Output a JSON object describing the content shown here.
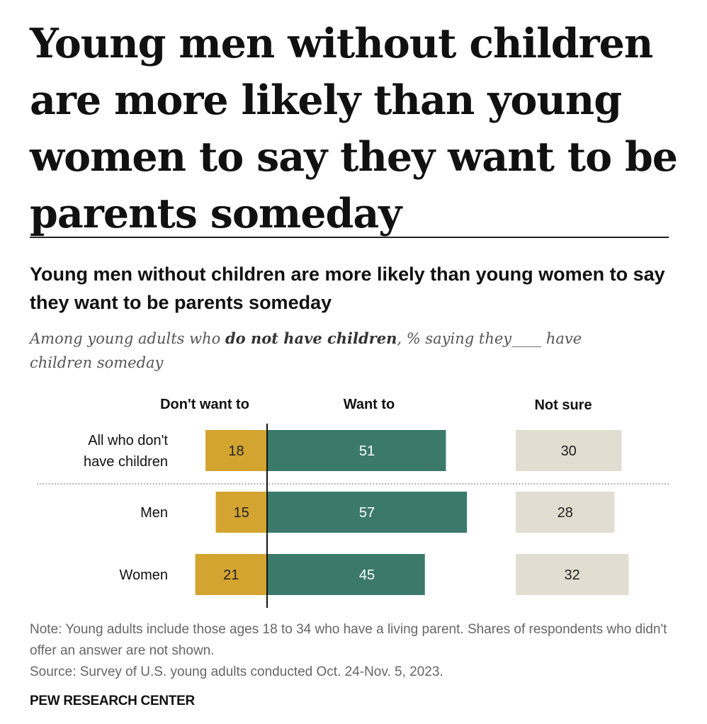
{
  "headline": "Young men without children are more likely than young women to say they want to be parents someday",
  "chart_data": {
    "type": "bar",
    "title": "Young men without children are more likely than young women to say they want to be parents someday",
    "subtitle": {
      "before": "Among young adults who ",
      "emphasis": "do not have children",
      "after": ", % saying they____ have children someday"
    },
    "categories": [
      "All who don't have children",
      "Men",
      "Women"
    ],
    "series": [
      {
        "name": "Don't want to",
        "values": [
          18,
          15,
          21
        ],
        "color": "#d4a431"
      },
      {
        "name": "Want to",
        "values": [
          51,
          57,
          45
        ],
        "color": "#3b7a6b"
      },
      {
        "name": "Not sure",
        "values": [
          30,
          28,
          32
        ],
        "color": "#e1ddd0"
      }
    ]
  },
  "notes": {
    "note": "Note: Young adults include those ages 18 to 34 who have a living parent. Shares of respondents who didn't offer an answer are not shown.",
    "source": "Source: Survey of U.S. young adults conducted Oct. 24-Nov. 5, 2023."
  },
  "brand": "PEW RESEARCH CENTER"
}
